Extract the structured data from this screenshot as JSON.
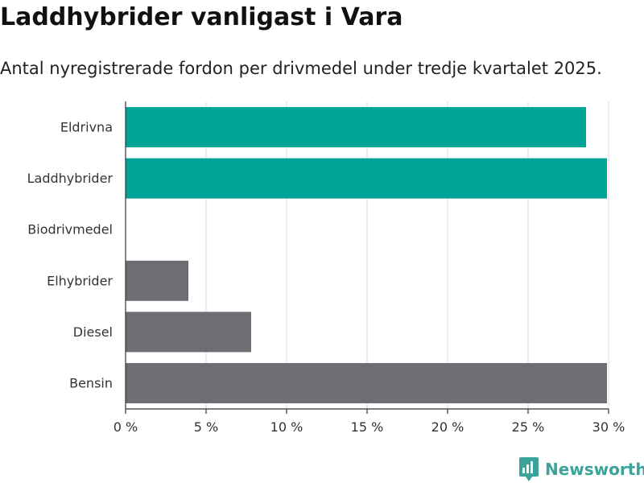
{
  "chart_data": {
    "type": "bar",
    "orientation": "horizontal",
    "title": "Laddhybrider vanligast i Vara",
    "subtitle": "Antal nyregistrerade fordon per drivmedel under tredje kvartalet 2025.",
    "categories": [
      "Eldrivna",
      "Laddhybrider",
      "Biodrivmedel",
      "Elhybrider",
      "Diesel",
      "Bensin"
    ],
    "values": [
      28.6,
      29.9,
      0,
      3.9,
      7.8,
      29.9
    ],
    "unit": "%",
    "highlighted": [
      "Eldrivna",
      "Laddhybrider"
    ],
    "xlim": [
      0,
      30
    ],
    "xticks": [
      0,
      5,
      10,
      15,
      20,
      25,
      30
    ],
    "tick_labels": [
      "0 %",
      "5 %",
      "10 %",
      "15 %",
      "20 %",
      "25 %",
      "30 %"
    ],
    "xlabel": "",
    "ylabel": "",
    "grid": true,
    "colors": {
      "highlight": "#00a499",
      "default": "#6e6d73",
      "grid": "#dddddd",
      "axis": "#333333"
    }
  },
  "brand": {
    "name": "Newsworthy",
    "icon": "newsworthy-logo-icon",
    "color": "#3aa39a"
  }
}
